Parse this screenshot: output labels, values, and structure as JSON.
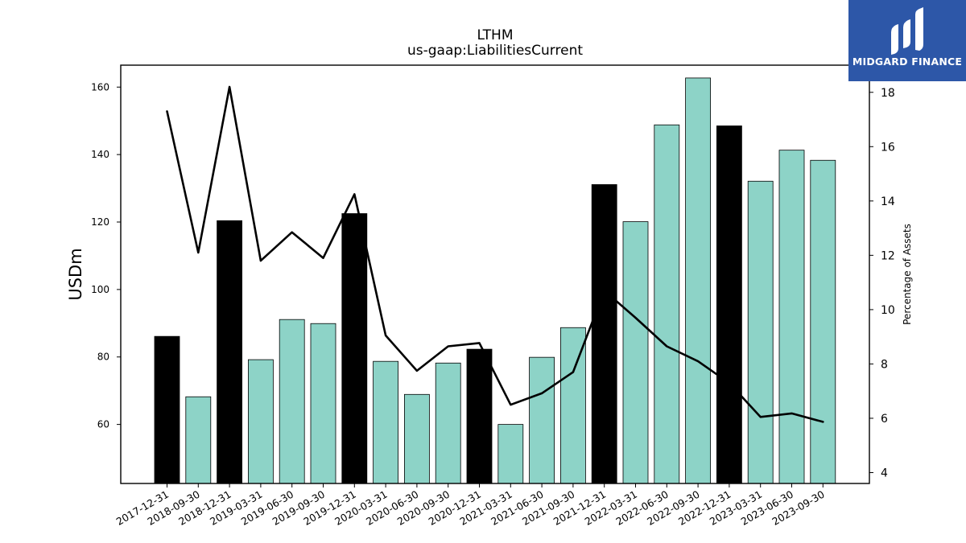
{
  "brand": {
    "name": "MIDGARD FINANCE",
    "bg_color": "#2d57a8",
    "fg_color": "#ffffff"
  },
  "colors": {
    "bar_regular": "#8dd3c7",
    "bar_highlight": "#000000",
    "line": "#000000"
  },
  "chart_data": {
    "type": "bar",
    "title": "LTHM",
    "subtitle": "us-gaap:LiabilitiesCurrent",
    "ylabel": "USDm",
    "y2label": "Percentage of Assets",
    "ylim": [
      42.5,
      166.5
    ],
    "y2lim": [
      3.6,
      19.0
    ],
    "yticks": [
      60,
      80,
      100,
      120,
      140,
      160
    ],
    "y2ticks": [
      4,
      6,
      8,
      10,
      12,
      14,
      16,
      18
    ],
    "grid": false,
    "categories": [
      "2017-12-31",
      "2018-09-30",
      "2018-12-31",
      "2019-03-31",
      "2019-06-30",
      "2019-09-30",
      "2019-12-31",
      "2020-03-31",
      "2020-06-30",
      "2020-09-30",
      "2020-12-31",
      "2021-03-31",
      "2021-06-30",
      "2021-09-30",
      "2021-12-31",
      "2022-03-31",
      "2022-06-30",
      "2022-09-30",
      "2022-12-31",
      "2023-03-31",
      "2023-06-30",
      "2023-09-30"
    ],
    "series": [
      {
        "type": "bar",
        "values": [
          86.1,
          68.2,
          120.4,
          79.2,
          91.1,
          89.9,
          122.5,
          78.7,
          68.9,
          78.2,
          82.3,
          60.0,
          79.9,
          88.7,
          131.1,
          120.1,
          148.8,
          162.7,
          148.5,
          132.1,
          141.3,
          138.3
        ],
        "highlight": [
          true,
          false,
          true,
          false,
          false,
          false,
          true,
          false,
          false,
          false,
          true,
          false,
          false,
          false,
          true,
          false,
          false,
          false,
          true,
          false,
          false,
          false
        ]
      },
      {
        "type": "line",
        "axis": "right",
        "values": [
          17.3,
          12.1,
          18.2,
          11.8,
          12.85,
          11.9,
          14.25,
          9.05,
          7.75,
          8.65,
          8.77,
          6.5,
          6.92,
          7.7,
          10.7,
          9.7,
          8.65,
          8.1,
          7.3,
          6.05,
          6.18,
          5.87
        ]
      }
    ]
  }
}
